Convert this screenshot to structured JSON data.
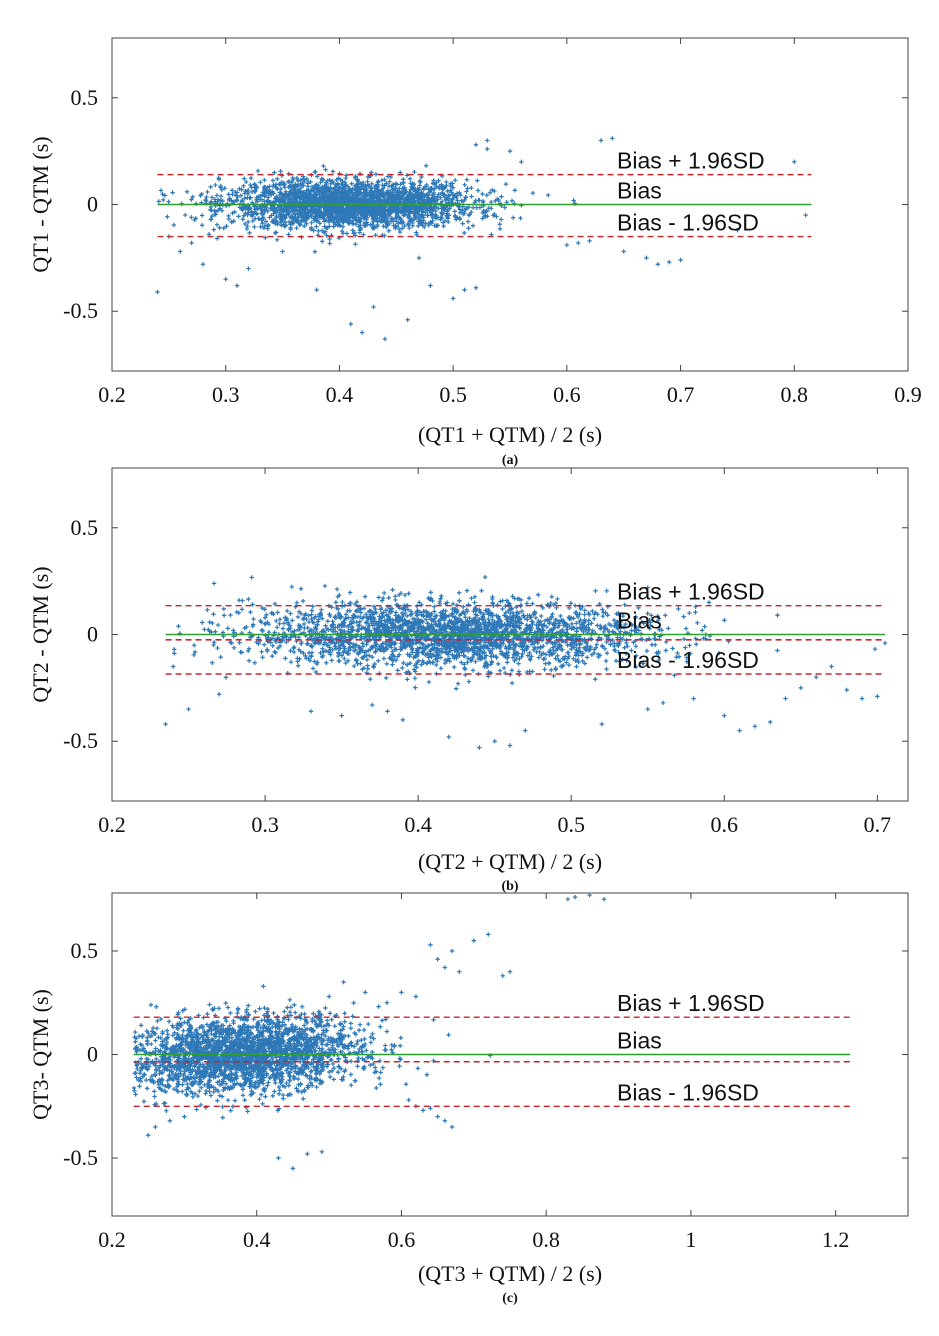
{
  "colors": {
    "points": "#2e78b7",
    "bias_line": "#2ca02c",
    "limit_line": "#c8262c",
    "axes": "#444444",
    "background": "#ffffff"
  },
  "chart_data": [
    {
      "type": "scatter",
      "panel_label": "(a)",
      "xlabel": "(QT1 + QTM) / 2 (s)",
      "ylabel": "QT1 - QTM (s)",
      "xlim": [
        0.2,
        0.9
      ],
      "ylim": [
        -0.78,
        0.78
      ],
      "xticks": [
        "0.2",
        "0.3",
        "0.4",
        "0.5",
        "0.6",
        "0.7",
        "0.8",
        "0.9"
      ],
      "yticks": [
        "-0.5",
        "0",
        "0.5"
      ],
      "annotations": [
        "Bias + 1.96SD",
        "Bias",
        "Bias - 1.96SD"
      ],
      "lines": {
        "bias": 0.0,
        "upper": 0.14,
        "lower": -0.15
      },
      "line_x_range": [
        0.24,
        0.815
      ],
      "cluster": {
        "x_min": 0.24,
        "x_max": 0.7,
        "x_center": 0.41,
        "x_spread": 0.055,
        "y_spread": 0.055,
        "trend": 0.0
      },
      "series": [
        {
          "x": [
            0.24,
            0.25,
            0.26,
            0.27,
            0.28,
            0.3,
            0.31,
            0.32,
            0.35,
            0.38,
            0.41,
            0.42,
            0.43,
            0.44,
            0.46,
            0.47,
            0.48,
            0.5,
            0.51,
            0.52,
            0.52,
            0.53,
            0.53,
            0.55,
            0.56,
            0.6,
            0.61,
            0.62,
            0.63,
            0.64,
            0.65,
            0.67,
            0.68,
            0.69,
            0.7,
            0.8,
            0.81,
            0.75
          ],
          "y": [
            -0.41,
            -0.15,
            -0.22,
            -0.18,
            -0.28,
            -0.35,
            -0.38,
            -0.3,
            -0.22,
            -0.4,
            -0.56,
            -0.6,
            -0.48,
            -0.63,
            -0.54,
            -0.25,
            -0.38,
            -0.44,
            -0.4,
            0.28,
            -0.39,
            0.3,
            0.26,
            0.25,
            0.2,
            -0.19,
            -0.18,
            -0.17,
            0.3,
            0.31,
            -0.22,
            -0.25,
            -0.28,
            -0.27,
            -0.26,
            0.2,
            -0.05,
            -0.12
          ]
        }
      ]
    },
    {
      "type": "scatter",
      "panel_label": "(b)",
      "xlabel": "(QT2 + QTM) / 2 (s)",
      "ylabel": "QT2 - QTM (s)",
      "xlim": [
        0.2,
        0.72
      ],
      "ylim": [
        -0.78,
        0.78
      ],
      "xticks": [
        "0.2",
        "0.3",
        "0.4",
        "0.5",
        "0.6",
        "0.7"
      ],
      "yticks": [
        "-0.5",
        "0",
        "0.5"
      ],
      "annotations": [
        "Bias + 1.96SD",
        "Bias",
        "Bias - 1.96SD"
      ],
      "lines": {
        "bias": 0.0,
        "bias_mean": -0.025,
        "upper": 0.135,
        "lower": -0.185
      },
      "line_x_range": [
        0.235,
        0.705
      ],
      "cluster": {
        "x_min": 0.235,
        "x_max": 0.705,
        "x_center": 0.42,
        "x_spread": 0.065,
        "y_spread": 0.075,
        "trend": 0.0
      },
      "series": [
        {
          "x": [
            0.235,
            0.24,
            0.25,
            0.27,
            0.33,
            0.35,
            0.37,
            0.38,
            0.39,
            0.42,
            0.44,
            0.45,
            0.46,
            0.47,
            0.52,
            0.55,
            0.56,
            0.58,
            0.6,
            0.61,
            0.62,
            0.63,
            0.64,
            0.65,
            0.66,
            0.68,
            0.69,
            0.7,
            0.705,
            0.55,
            0.57,
            0.59,
            0.67
          ],
          "y": [
            -0.42,
            -0.15,
            -0.35,
            -0.28,
            -0.36,
            -0.38,
            -0.33,
            -0.36,
            -0.4,
            -0.48,
            -0.53,
            -0.5,
            -0.52,
            -0.45,
            -0.42,
            -0.35,
            -0.32,
            -0.3,
            -0.38,
            -0.45,
            -0.43,
            -0.41,
            -0.3,
            -0.25,
            -0.2,
            -0.26,
            -0.3,
            -0.29,
            -0.04,
            0.22,
            0.12,
            0.15,
            -0.15
          ]
        }
      ]
    },
    {
      "type": "scatter",
      "panel_label": "(c)",
      "xlabel": "(QT3 + QTM) / 2 (s)",
      "ylabel": "QT3- QTM (s)",
      "xlim": [
        0.2,
        1.3
      ],
      "ylim": [
        -0.78,
        0.78
      ],
      "xticks": [
        "0.2",
        "0.4",
        "0.6",
        "0.8",
        "1",
        "1.2"
      ],
      "yticks": [
        "-0.5",
        "0",
        "0.5"
      ],
      "annotations": [
        "Bias + 1.96SD",
        "Bias",
        "Bias - 1.96SD"
      ],
      "lines": {
        "bias": 0.0,
        "bias_mean": -0.035,
        "upper": 0.18,
        "lower": -0.25
      },
      "line_x_range": [
        0.23,
        1.22
      ],
      "cluster": {
        "x_min": 0.23,
        "x_max": 0.75,
        "x_center": 0.38,
        "x_spread": 0.08,
        "y_spread": 0.09,
        "trend": 0.45
      },
      "series": [
        {
          "x": [
            0.25,
            0.26,
            0.28,
            0.3,
            0.43,
            0.45,
            0.47,
            0.49,
            0.5,
            0.52,
            0.55,
            0.58,
            0.6,
            0.62,
            0.64,
            0.65,
            0.66,
            0.67,
            0.68,
            0.7,
            0.72,
            0.74,
            0.75,
            0.83,
            0.84,
            0.86,
            0.88,
            0.61,
            0.62,
            0.63,
            0.64,
            0.65,
            0.66,
            0.67,
            0.56,
            0.53
          ],
          "y": [
            -0.39,
            -0.35,
            -0.32,
            -0.3,
            -0.5,
            -0.55,
            -0.48,
            -0.47,
            0.28,
            0.35,
            0.3,
            0.25,
            0.3,
            0.28,
            0.53,
            0.46,
            0.42,
            0.5,
            0.4,
            0.55,
            0.58,
            0.38,
            0.4,
            0.75,
            0.76,
            0.77,
            0.75,
            -0.22,
            -0.25,
            -0.27,
            -0.26,
            -0.3,
            -0.32,
            -0.35,
            0.1,
            0.15
          ]
        }
      ]
    }
  ]
}
